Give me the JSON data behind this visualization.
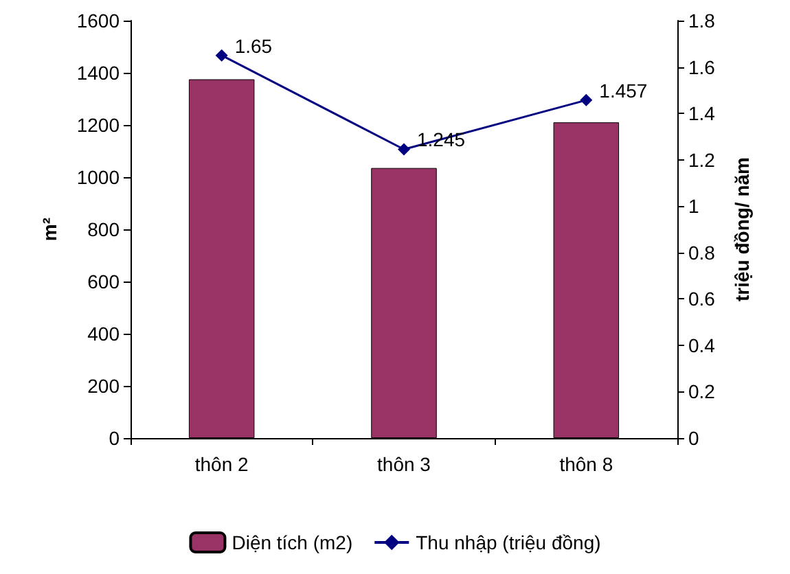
{
  "chart_data": {
    "type": "bar",
    "categories": [
      "thôn 2",
      "thôn 3",
      "thôn 8"
    ],
    "ylabel": "m²",
    "y2label": "triệu đồng/ năm",
    "series": [
      {
        "name": "Diện tích (m2)",
        "color": "#993366",
        "values": [
          1375,
          1035,
          1210
        ]
      },
      {
        "name": "Thu nhập (triệu đồng)",
        "type": "line",
        "axis": "y2",
        "color": "#000080",
        "marker": "diamond",
        "values": [
          1.65,
          1.245,
          1.457
        ],
        "value_labels": [
          "1.65",
          "1.245",
          "1.457"
        ]
      }
    ],
    "ylim": [
      0,
      1600
    ],
    "yticks": [
      0,
      200,
      400,
      600,
      800,
      1000,
      1200,
      1400,
      1600
    ],
    "y2lim": [
      0,
      1.8
    ],
    "y2ticks": [
      0,
      0.2,
      0.4,
      0.6,
      0.8,
      1,
      1.2,
      1.4,
      1.6,
      1.8
    ],
    "grid": false,
    "legend": "bottom"
  }
}
